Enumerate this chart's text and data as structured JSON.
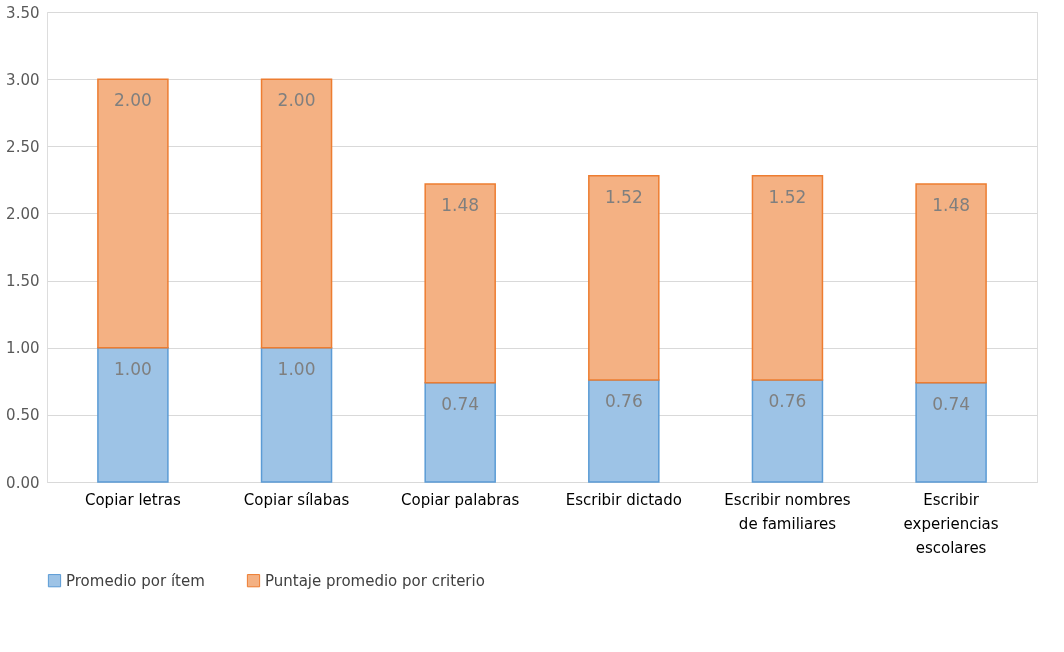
{
  "chart_data": {
    "type": "bar",
    "stacked": true,
    "categories": [
      "Copiar letras",
      "Copiar sílabas",
      "Copiar palabras",
      "Escribir dictado",
      "Escribir nombres de familiares",
      "Escribir experiencias escolares"
    ],
    "series": [
      {
        "name": "Promedio por ítem",
        "color": "#9dc3e6",
        "values": [
          1.0,
          1.0,
          0.74,
          0.76,
          0.76,
          0.74
        ],
        "value_labels": [
          "1.00",
          "1.00",
          "0.74",
          "0.76",
          "0.76",
          "0.74"
        ]
      },
      {
        "name": "Puntaje promedio por criterio",
        "color": "#f4b183",
        "values": [
          2.0,
          2.0,
          1.48,
          1.52,
          1.52,
          1.48
        ],
        "value_labels": [
          "2.00",
          "2.00",
          "1.48",
          "1.52",
          "1.52",
          "1.48"
        ]
      }
    ],
    "ylim": [
      0,
      3.5
    ],
    "yticks": [
      {
        "value": 0,
        "label": "0.00"
      },
      {
        "value": 0.5,
        "label": "0.50"
      },
      {
        "value": 1,
        "label": "1.00"
      },
      {
        "value": 1.5,
        "label": "1.50"
      },
      {
        "value": 2,
        "label": "2.00"
      },
      {
        "value": 2.5,
        "label": "2.50"
      },
      {
        "value": 3,
        "label": "3.00"
      },
      {
        "value": 3.5,
        "label": "3.50"
      }
    ],
    "grid": "y",
    "legend": "bottom"
  }
}
